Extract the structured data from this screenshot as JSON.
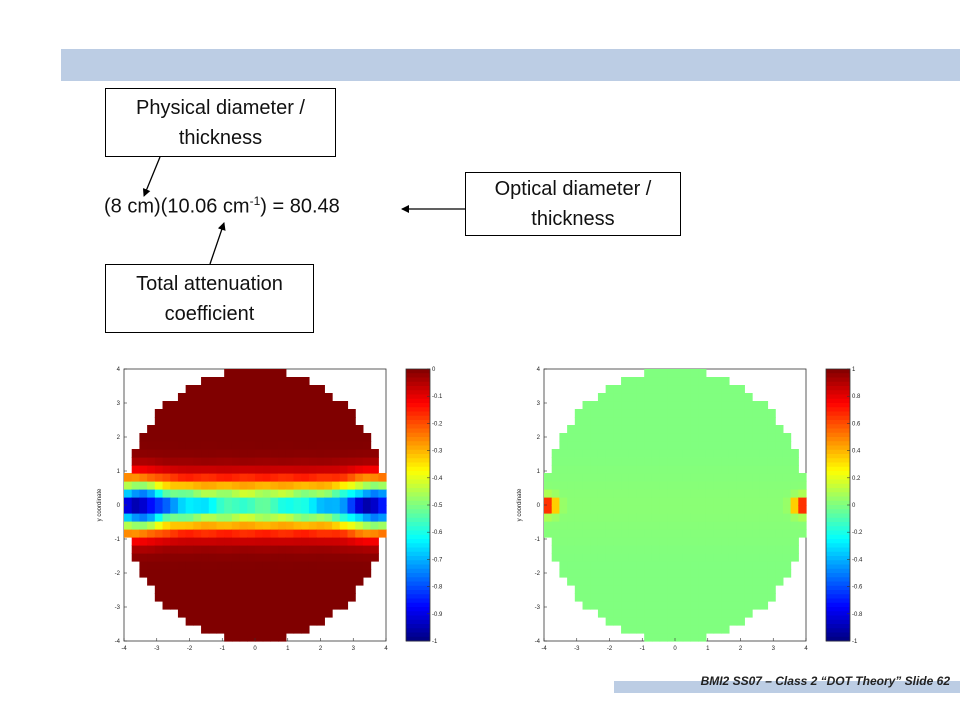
{
  "header": {
    "bar_color": "#bccde4"
  },
  "callouts": {
    "physical": {
      "line1": "Physical diameter /",
      "line2": "thickness"
    },
    "optical": {
      "line1": "Optical diameter /",
      "line2": "thickness"
    },
    "total": {
      "line1": "Total attenuation",
      "line2": "coefficient"
    }
  },
  "equation": {
    "part1": "(8 cm)(10.06 cm",
    "sup": "-1",
    "part2": ") = 80.48"
  },
  "footer": {
    "text": "BMI2 SS07 – Class 2 “DOT Theory” Slide 62"
  },
  "chart_data": [
    {
      "type": "heatmap",
      "ylabel": "y coordinate",
      "xlim": [
        -4,
        4
      ],
      "ylim": [
        -4,
        4
      ],
      "xticks": [
        "-4",
        "-3",
        "-2",
        "-1",
        "0",
        "1",
        "2",
        "3",
        "4"
      ],
      "yticks": [
        "4",
        "3",
        "2",
        "1",
        "0",
        "-1",
        "-2",
        "-3",
        "-4"
      ],
      "colorbar": {
        "range": [
          -1,
          0
        ],
        "ticks": [
          "0",
          "-0.1",
          "-0.2",
          "-0.3",
          "-0.4",
          "-0.5",
          "-0.6",
          "-0.7",
          "-0.8",
          "-0.9",
          "-1"
        ]
      }
    },
    {
      "type": "heatmap",
      "ylabel": "y coordinate",
      "xlim": [
        -4,
        4
      ],
      "ylim": [
        -4,
        4
      ],
      "xticks": [
        "-4",
        "-3",
        "-2",
        "-1",
        "0",
        "1",
        "2",
        "3",
        "4"
      ],
      "yticks": [
        "4",
        "3",
        "2",
        "1",
        "0",
        "-1",
        "-2",
        "-3",
        "-4"
      ],
      "colorbar": {
        "range": [
          -1,
          1
        ],
        "ticks": [
          "1",
          "0.8",
          "0.6",
          "0.4",
          "0.2",
          "0",
          "-0.2",
          "-0.4",
          "-0.6",
          "-0.8",
          "-1"
        ]
      }
    }
  ]
}
